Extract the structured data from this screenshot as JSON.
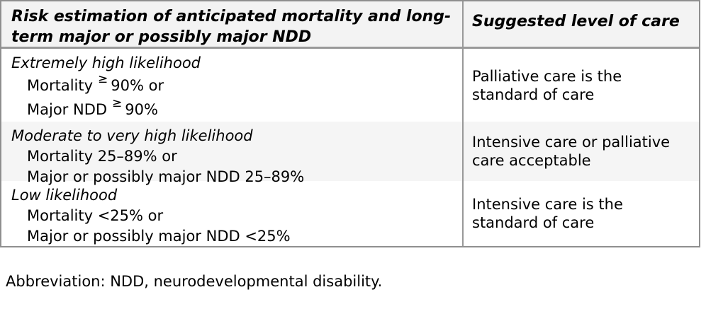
{
  "table": {
    "header": {
      "risk_column": "Risk estimation of anticipated mortality and long-term major or possibly major NDD",
      "care_column": "Suggested level of care"
    },
    "rows": [
      {
        "likelihood": "Extremely high likelihood",
        "lines": [
          {
            "pre": "Mortality",
            "sym": "≥",
            "post": "90% or"
          },
          {
            "pre": "Major NDD",
            "sym": "≥",
            "post": "90%"
          }
        ],
        "care": "Palliative care is the standard of care"
      },
      {
        "likelihood": "Moderate to very high likelihood",
        "lines": [
          {
            "pre": "Mortality 25–89% or",
            "sym": "",
            "post": ""
          },
          {
            "pre": "Major or possibly major NDD 25–89%",
            "sym": "",
            "post": ""
          }
        ],
        "care": "Intensive care or palliative care acceptable"
      },
      {
        "likelihood": "Low likelihood",
        "lines": [
          {
            "pre": "Mortality <25% or",
            "sym": "",
            "post": ""
          },
          {
            "pre": "Major or possibly major NDD <25%",
            "sym": "",
            "post": ""
          }
        ],
        "care": "Intensive care is the standard of care"
      }
    ]
  },
  "footnote": "Abbreviation: NDD, neurodevelopmental disability.",
  "colors": {
    "border_gray": "#8f8f8f",
    "divider_gray": "#999999",
    "header_bg": "#f3f3f3",
    "shaded_row_bg": "#f5f5f5",
    "text": "#000000",
    "page_bg": "#ffffff"
  }
}
